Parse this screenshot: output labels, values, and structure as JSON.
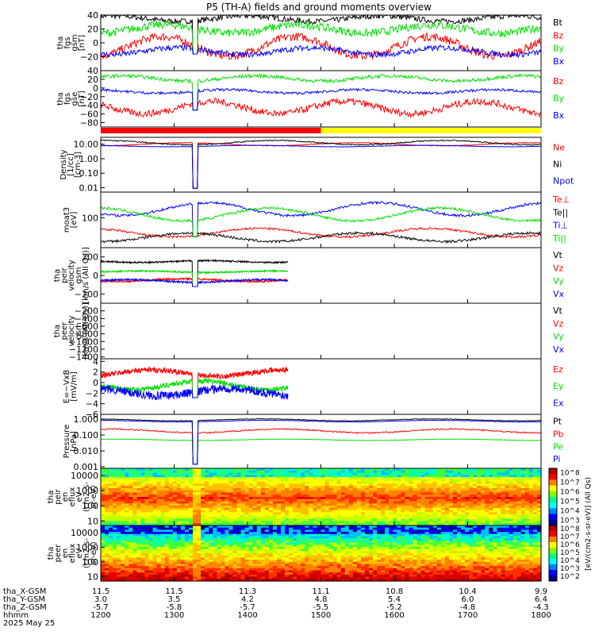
{
  "title": "P5 (TH-A) fields and ground moments overview",
  "colors": {
    "black": "#000000",
    "red": "#ff0000",
    "green": "#00e000",
    "blue": "#0000ff",
    "yellow": "#ffff00"
  },
  "chart_data": {
    "type": "line",
    "x_ticks": [
      1200,
      1300,
      1400,
      1500,
      1600,
      1700,
      1800
    ],
    "xlim": [
      1200,
      1800
    ],
    "footer": {
      "rows": [
        {
          "label": "tha_X-GSM",
          "values": [
            "11.5",
            "11.5",
            "11.3",
            "11.1",
            "10.8",
            "10.4",
            "9.9"
          ]
        },
        {
          "label": "tha_Y-GSM",
          "values": [
            "3.0",
            "3.5",
            "4.2",
            "4.8",
            "5.4",
            "6.0",
            "6.4"
          ]
        },
        {
          "label": "tha_Z-GSM",
          "values": [
            "-5.7",
            "-5.8",
            "-5.7",
            "-5.5",
            "-5.2",
            "-4.8",
            "-4.3"
          ]
        },
        {
          "label": "hhmm",
          "values": [
            "1200",
            "1300",
            "1400",
            "1500",
            "1600",
            "1700",
            "1800"
          ]
        }
      ],
      "date": "2025 May 25"
    },
    "mode_bar": [
      {
        "color": "red",
        "from": 1200,
        "to": 1500
      },
      {
        "color": "yellow",
        "from": 1500,
        "to": 1800
      }
    ],
    "panels": [
      {
        "id": "fgs-gsm",
        "ylabel": [
          "tha",
          "fgs",
          "gsm",
          "[nT]"
        ],
        "ylim": [
          -40,
          40
        ],
        "ticks": [
          40,
          20,
          0,
          -20
        ],
        "series": [
          {
            "name": "Bt",
            "color": "black",
            "base": 35,
            "amp": 4,
            "noise": 4,
            "gap": true
          },
          {
            "name": "Bz",
            "color": "red",
            "base": -5,
            "amp": 14,
            "noise": 6,
            "gap": true
          },
          {
            "name": "By",
            "color": "green",
            "base": 20,
            "amp": 6,
            "noise": 6,
            "gap": true
          },
          {
            "name": "Bx",
            "color": "blue",
            "base": -12,
            "amp": 5,
            "noise": 4,
            "gap": true
          }
        ]
      },
      {
        "id": "fgs-gse",
        "ylabel": [
          "tha",
          "fgs",
          "gse",
          "[nT]"
        ],
        "ylim": [
          -90,
          40
        ],
        "ticks": [
          40,
          20,
          0,
          -20,
          -40,
          -60,
          -80
        ],
        "series": [
          {
            "name": "Bz",
            "color": "red",
            "base": -45,
            "amp": 14,
            "noise": 8,
            "gap": true
          },
          {
            "name": "By",
            "color": "green",
            "base": 22,
            "amp": 6,
            "noise": 4,
            "gap": true
          },
          {
            "name": "Bx",
            "color": "blue",
            "base": -8,
            "amp": 4,
            "noise": 3,
            "gap": true
          }
        ]
      },
      {
        "id": "density",
        "ylabel": [
          "Density",
          "[1/cc]",
          "[cm-3]"
        ],
        "ylim": [
          0.005,
          30
        ],
        "log": true,
        "ticks": [
          10.0,
          1.0,
          0.1,
          0.01
        ],
        "tick_labels": [
          "10.00",
          "1.00",
          "0.10",
          "0.01"
        ],
        "series": [
          {
            "name": "Ne",
            "color": "red",
            "base": 10,
            "amp": 0.1,
            "noise": 0.05,
            "gap": true
          },
          {
            "name": "Ni",
            "color": "black",
            "base": 13,
            "amp": 0.15,
            "noise": 0.08,
            "gap": true
          },
          {
            "name": "Npot",
            "color": "blue",
            "base": 7.5,
            "amp": 0.05,
            "noise": 0.03,
            "gap": true
          }
        ]
      },
      {
        "id": "temperature",
        "ylabel": [
          "moat3",
          "[eV]"
        ],
        "ylim": [
          20,
          400
        ],
        "log": true,
        "ticks": [
          100
        ],
        "tick_labels": [
          "100"
        ],
        "series": [
          {
            "name": "Te⊥",
            "color": "red",
            "base": 45,
            "amp": 0.1,
            "noise": 0.05,
            "gap": true
          },
          {
            "name": "Te||",
            "color": "black",
            "base": 35,
            "amp": 0.1,
            "noise": 0.06,
            "gap": true
          },
          {
            "name": "Ti⊥",
            "color": "blue",
            "base": 160,
            "amp": 0.15,
            "noise": 0.06,
            "gap": true
          },
          {
            "name": "Ti||",
            "color": "green",
            "base": 120,
            "amp": 0.15,
            "noise": 0.06,
            "gap": true
          }
        ]
      },
      {
        "id": "peir-velocity",
        "ylabel": [
          "tha",
          "peir",
          "velocity",
          "gsm",
          "[km/s (All Qs)]"
        ],
        "ylim": [
          -300,
          300
        ],
        "ticks": [
          200,
          0,
          -200
        ],
        "xmax": 1455,
        "series": [
          {
            "name": "Vt",
            "color": "black",
            "base": 150,
            "amp": 10,
            "noise": 8,
            "gap": true
          },
          {
            "name": "Vz",
            "color": "red",
            "base": -50,
            "amp": 15,
            "noise": 10,
            "gap": true
          },
          {
            "name": "Vy",
            "color": "green",
            "base": 40,
            "amp": 8,
            "noise": 8,
            "gap": true
          },
          {
            "name": "Vx",
            "color": "blue",
            "base": -60,
            "amp": 15,
            "noise": 10,
            "gap": true
          }
        ]
      },
      {
        "id": "peer-velocity",
        "ylabel": [
          "tha",
          "peer",
          "velocity",
          "gsm",
          "[km/s (All Qs)]"
        ],
        "ylim": [
          -1450,
          0
        ],
        "ticks": [
          -200,
          -400,
          -600,
          -800,
          -1000,
          -1200,
          -1400
        ],
        "series": [],
        "legend": [
          {
            "name": "Vt",
            "color": "black"
          },
          {
            "name": "Vz",
            "color": "red"
          },
          {
            "name": "Vy",
            "color": "green"
          },
          {
            "name": "Vx",
            "color": "blue"
          }
        ]
      },
      {
        "id": "e-field",
        "ylabel": [
          "E=−VxB",
          "[mV/m]"
        ],
        "ylim": [
          -6,
          4.5
        ],
        "ticks": [
          4,
          2,
          0,
          -2,
          -4,
          -6
        ],
        "xmax": 1455,
        "series": [
          {
            "name": "Ez",
            "color": "red",
            "base": 1.8,
            "amp": 0.6,
            "noise": 0.5,
            "gap": true
          },
          {
            "name": "Ey",
            "color": "green",
            "base": -0.5,
            "amp": 0.8,
            "noise": 0.5,
            "gap": true
          },
          {
            "name": "Ex",
            "color": "blue",
            "base": -1.8,
            "amp": 0.7,
            "noise": 0.8,
            "gap": true
          }
        ]
      },
      {
        "id": "pressure",
        "ylabel": [
          "Pressure",
          "[nPa]"
        ],
        "ylim": [
          0.0008,
          2
        ],
        "log": true,
        "ticks": [
          1,
          0.1,
          0.01,
          0.001
        ],
        "tick_labels": [
          "1.000",
          "0.100",
          "0.010",
          "0.001"
        ],
        "series": [
          {
            "name": "Pt",
            "color": "black",
            "base": 0.9,
            "amp": 0.06,
            "noise": 0.04,
            "gap": true
          },
          {
            "name": "Pb",
            "color": "red",
            "base": 0.18,
            "amp": 0.12,
            "noise": 0.08,
            "gap": true
          },
          {
            "name": "Pe",
            "color": "green",
            "base": 0.05,
            "amp": 0.04,
            "noise": 0.02,
            "gap": true
          },
          {
            "name": "Pi",
            "color": "blue",
            "base": 0.75,
            "amp": 0.05,
            "noise": 0.03,
            "gap": true
          }
        ]
      },
      {
        "id": "peir-spec",
        "type": "heatmap",
        "ylabel": [
          "tha",
          "peir",
          "en",
          "eflux",
          "eV",
          "(cm2-s-",
          "sr-eV)"
        ],
        "ylim": [
          5,
          30000
        ],
        "log": true,
        "ticks": [
          10000,
          1000,
          100,
          10
        ],
        "tick_labels": [
          "10000",
          "1000",
          "100",
          "10"
        ]
      },
      {
        "id": "peer-spec",
        "type": "heatmap",
        "ylabel": [
          "tha",
          "peer",
          "en",
          "eflux",
          "eV",
          "(cm2-s-",
          "sr-eV)"
        ],
        "ylim": [
          5,
          30000
        ],
        "log": true,
        "ticks": [
          10000,
          1000,
          100,
          10
        ],
        "tick_labels": [
          "10000",
          "1000",
          "100",
          "10"
        ]
      }
    ],
    "colorbar": {
      "label": "[eV/(cm2-s-sr-eV)] (All Qs)",
      "ticks_upper": [
        "10^8",
        "10^7",
        "10^6",
        "10^5",
        "10^4",
        "10^3"
      ],
      "ticks_lower": [
        "10^8",
        "10^7",
        "10^6",
        "10^5",
        "10^4",
        "10^3",
        "10^2"
      ]
    }
  }
}
